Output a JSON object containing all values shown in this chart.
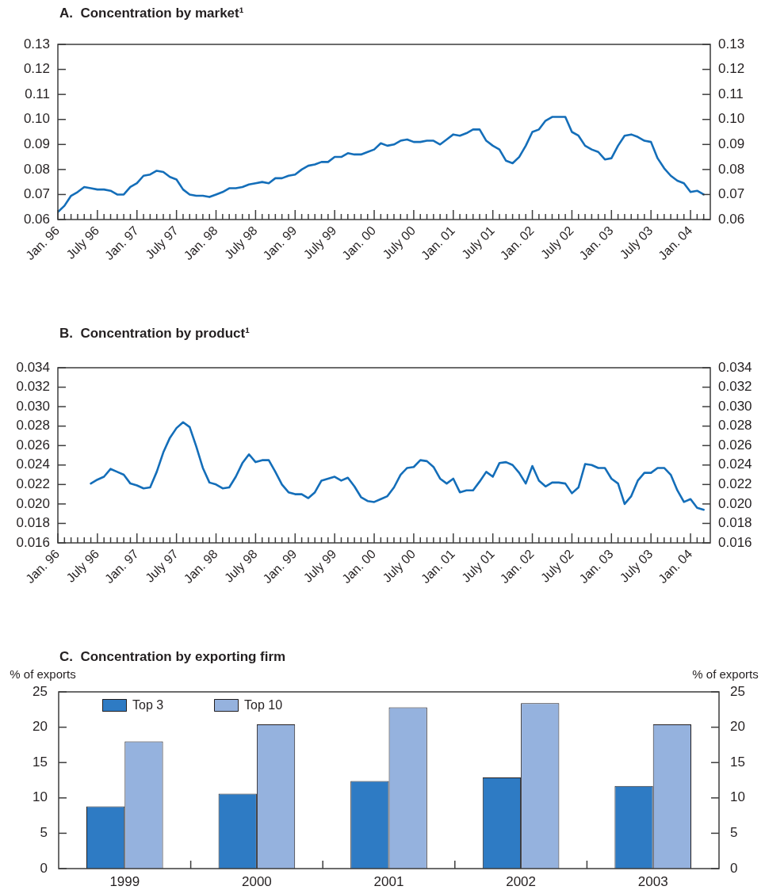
{
  "chart_data": [
    {
      "type": "line",
      "title": "A.  Concentration by market¹",
      "x": [
        "1996-01",
        "1996-02",
        "1996-03",
        "1996-04",
        "1996-05",
        "1996-06",
        "1996-07",
        "1996-08",
        "1996-09",
        "1996-10",
        "1996-11",
        "1996-12",
        "1997-01",
        "1997-02",
        "1997-03",
        "1997-04",
        "1997-05",
        "1997-06",
        "1997-07",
        "1997-08",
        "1997-09",
        "1997-10",
        "1997-11",
        "1997-12",
        "1998-01",
        "1998-02",
        "1998-03",
        "1998-04",
        "1998-05",
        "1998-06",
        "1998-07",
        "1998-08",
        "1998-09",
        "1998-10",
        "1998-11",
        "1998-12",
        "1999-01",
        "1999-02",
        "1999-03",
        "1999-04",
        "1999-05",
        "1999-06",
        "1999-07",
        "1999-08",
        "1999-09",
        "1999-10",
        "1999-11",
        "1999-12",
        "2000-01",
        "2000-02",
        "2000-03",
        "2000-04",
        "2000-05",
        "2000-06",
        "2000-07",
        "2000-08",
        "2000-09",
        "2000-10",
        "2000-11",
        "2000-12",
        "2001-01",
        "2001-02",
        "2001-03",
        "2001-04",
        "2001-05",
        "2001-06",
        "2001-07",
        "2001-08",
        "2001-09",
        "2001-10",
        "2001-11",
        "2001-12",
        "2002-01",
        "2002-02",
        "2002-03",
        "2002-04",
        "2002-05",
        "2002-06",
        "2002-07",
        "2002-08",
        "2002-09",
        "2002-10",
        "2002-11",
        "2002-12",
        "2003-01",
        "2003-02",
        "2003-03",
        "2003-04",
        "2003-05",
        "2003-06",
        "2003-07",
        "2003-08",
        "2003-09",
        "2003-10",
        "2003-11",
        "2003-12",
        "2004-01",
        "2004-02",
        "2004-03"
      ],
      "color": "#146eb9",
      "values": [
        0.063,
        0.0655,
        0.0695,
        0.071,
        0.073,
        0.0725,
        0.072,
        0.072,
        0.0715,
        0.07,
        0.07,
        0.073,
        0.0745,
        0.0775,
        0.078,
        0.0795,
        0.079,
        0.077,
        0.076,
        0.072,
        0.07,
        0.0695,
        0.0695,
        0.069,
        0.07,
        0.071,
        0.0725,
        0.0725,
        0.073,
        0.074,
        0.0745,
        0.075,
        0.0745,
        0.0765,
        0.0765,
        0.0775,
        0.078,
        0.08,
        0.0815,
        0.082,
        0.083,
        0.083,
        0.085,
        0.085,
        0.0865,
        0.086,
        0.086,
        0.087,
        0.088,
        0.0905,
        0.0895,
        0.09,
        0.0915,
        0.092,
        0.091,
        0.091,
        0.0915,
        0.0915,
        0.09,
        0.092,
        0.094,
        0.0935,
        0.0945,
        0.096,
        0.096,
        0.0915,
        0.0895,
        0.088,
        0.0835,
        0.0825,
        0.085,
        0.0895,
        0.095,
        0.096,
        0.0995,
        0.101,
        0.101,
        0.101,
        0.095,
        0.0935,
        0.0895,
        0.088,
        0.087,
        0.084,
        0.0845,
        0.0895,
        0.0935,
        0.094,
        0.093,
        0.0915,
        0.091,
        0.0845,
        0.0805,
        0.0775,
        0.0755,
        0.0745,
        0.071,
        0.0715,
        0.07
      ],
      "xlim": [
        "1996-01",
        "2004-04"
      ],
      "xticks": [
        {
          "value": "1996-01",
          "label": "Jan. 96"
        },
        {
          "value": "1996-02",
          "label": null
        },
        {
          "value": "1996-03",
          "label": null
        },
        {
          "value": "1996-04",
          "label": null
        },
        {
          "value": "1996-05",
          "label": null
        },
        {
          "value": "1996-06",
          "label": null
        },
        {
          "value": "1996-07",
          "label": "July 96"
        },
        {
          "value": "1996-08",
          "label": null
        },
        {
          "value": "1996-09",
          "label": null
        },
        {
          "value": "1996-10",
          "label": null
        },
        {
          "value": "1996-11",
          "label": null
        },
        {
          "value": "1996-12",
          "label": null
        },
        {
          "value": "1997-01",
          "label": "Jan. 97"
        },
        {
          "value": "1997-02",
          "label": null
        },
        {
          "value": "1997-03",
          "label": null
        },
        {
          "value": "1997-04",
          "label": null
        },
        {
          "value": "1997-05",
          "label": null
        },
        {
          "value": "1997-06",
          "label": null
        },
        {
          "value": "1997-07",
          "label": "July 97"
        },
        {
          "value": "1997-08",
          "label": null
        },
        {
          "value": "1997-09",
          "label": null
        },
        {
          "value": "1997-10",
          "label": null
        },
        {
          "value": "1997-11",
          "label": null
        },
        {
          "value": "1997-12",
          "label": null
        },
        {
          "value": "1998-01",
          "label": "Jan. 98"
        },
        {
          "value": "1998-02",
          "label": null
        },
        {
          "value": "1998-03",
          "label": null
        },
        {
          "value": "1998-04",
          "label": null
        },
        {
          "value": "1998-05",
          "label": null
        },
        {
          "value": "1998-06",
          "label": null
        },
        {
          "value": "1998-07",
          "label": "July 98"
        },
        {
          "value": "1998-08",
          "label": null
        },
        {
          "value": "1998-09",
          "label": null
        },
        {
          "value": "1998-10",
          "label": null
        },
        {
          "value": "1998-11",
          "label": null
        },
        {
          "value": "1998-12",
          "label": null
        },
        {
          "value": "1999-01",
          "label": "Jan. 99"
        },
        {
          "value": "1999-02",
          "label": null
        },
        {
          "value": "1999-03",
          "label": null
        },
        {
          "value": "1999-04",
          "label": null
        },
        {
          "value": "1999-05",
          "label": null
        },
        {
          "value": "1999-06",
          "label": null
        },
        {
          "value": "1999-07",
          "label": "July 99"
        },
        {
          "value": "1999-08",
          "label": null
        },
        {
          "value": "1999-09",
          "label": null
        },
        {
          "value": "1999-10",
          "label": null
        },
        {
          "value": "1999-11",
          "label": null
        },
        {
          "value": "1999-12",
          "label": null
        },
        {
          "value": "2000-01",
          "label": "Jan. 00"
        },
        {
          "value": "2000-02",
          "label": null
        },
        {
          "value": "2000-03",
          "label": null
        },
        {
          "value": "2000-04",
          "label": null
        },
        {
          "value": "2000-05",
          "label": null
        },
        {
          "value": "2000-06",
          "label": null
        },
        {
          "value": "2000-07",
          "label": "July 00"
        },
        {
          "value": "2000-08",
          "label": null
        },
        {
          "value": "2000-09",
          "label": null
        },
        {
          "value": "2000-10",
          "label": null
        },
        {
          "value": "2000-11",
          "label": null
        },
        {
          "value": "2000-12",
          "label": null
        },
        {
          "value": "2001-01",
          "label": "Jan. 01"
        },
        {
          "value": "2001-02",
          "label": null
        },
        {
          "value": "2001-03",
          "label": null
        },
        {
          "value": "2001-04",
          "label": null
        },
        {
          "value": "2001-05",
          "label": null
        },
        {
          "value": "2001-06",
          "label": null
        },
        {
          "value": "2001-07",
          "label": "July 01"
        },
        {
          "value": "2001-08",
          "label": null
        },
        {
          "value": "2001-09",
          "label": null
        },
        {
          "value": "2001-10",
          "label": null
        },
        {
          "value": "2001-11",
          "label": null
        },
        {
          "value": "2001-12",
          "label": null
        },
        {
          "value": "2002-01",
          "label": "Jan. 02"
        },
        {
          "value": "2002-02",
          "label": null
        },
        {
          "value": "2002-03",
          "label": null
        },
        {
          "value": "2002-04",
          "label": null
        },
        {
          "value": "2002-05",
          "label": null
        },
        {
          "value": "2002-06",
          "label": null
        },
        {
          "value": "2002-07",
          "label": "July 02"
        },
        {
          "value": "2002-08",
          "label": null
        },
        {
          "value": "2002-09",
          "label": null
        },
        {
          "value": "2002-10",
          "label": null
        },
        {
          "value": "2002-11",
          "label": null
        },
        {
          "value": "2002-12",
          "label": null
        },
        {
          "value": "2003-01",
          "label": "Jan. 03"
        },
        {
          "value": "2003-02",
          "label": null
        },
        {
          "value": "2003-03",
          "label": null
        },
        {
          "value": "2003-04",
          "label": null
        },
        {
          "value": "2003-05",
          "label": null
        },
        {
          "value": "2003-06",
          "label": null
        },
        {
          "value": "2003-07",
          "label": "July 03"
        },
        {
          "value": "2003-08",
          "label": null
        },
        {
          "value": "2003-09",
          "label": null
        },
        {
          "value": "2003-10",
          "label": null
        },
        {
          "value": "2003-11",
          "label": null
        },
        {
          "value": "2003-12",
          "label": null
        },
        {
          "value": "2004-01",
          "label": "Jan. 04"
        },
        {
          "value": "2004-02",
          "label": null
        },
        {
          "value": "2004-03",
          "label": null
        }
      ],
      "ylim": [
        0.06,
        0.13
      ],
      "yticks": [
        0.06,
        0.07,
        0.08,
        0.09,
        {
          "value": 0.1,
          "label": "0.10"
        },
        0.11,
        0.12,
        0.13
      ],
      "y2lim": [
        0.06,
        0.13
      ],
      "y2ticks": [
        0.06,
        0.07,
        0.08,
        0.09,
        {
          "value": 0.1,
          "label": "0.10"
        },
        0.11,
        0.12,
        0.13
      ],
      "marker": "none",
      "line_style": "solid"
    },
    {
      "type": "line",
      "title": "B.  Concentration by product¹",
      "x": [
        "1996-06",
        "1996-07",
        "1996-08",
        "1996-09",
        "1996-10",
        "1996-11",
        "1996-12",
        "1997-01",
        "1997-02",
        "1997-03",
        "1997-04",
        "1997-05",
        "1997-06",
        "1997-07",
        "1997-08",
        "1997-09",
        "1997-10",
        "1997-11",
        "1997-12",
        "1998-01",
        "1998-02",
        "1998-03",
        "1998-04",
        "1998-05",
        "1998-06",
        "1998-07",
        "1998-08",
        "1998-09",
        "1998-10",
        "1998-11",
        "1998-12",
        "1999-01",
        "1999-02",
        "1999-03",
        "1999-04",
        "1999-05",
        "1999-06",
        "1999-07",
        "1999-08",
        "1999-09",
        "1999-10",
        "1999-11",
        "1999-12",
        "2000-01",
        "2000-02",
        "2000-03",
        "2000-04",
        "2000-05",
        "2000-06",
        "2000-07",
        "2000-08",
        "2000-09",
        "2000-10",
        "2000-11",
        "2000-12",
        "2001-01",
        "2001-02",
        "2001-03",
        "2001-04",
        "2001-05",
        "2001-06",
        "2001-07",
        "2001-08",
        "2001-09",
        "2001-10",
        "2001-11",
        "2001-12",
        "2002-01",
        "2002-02",
        "2002-03",
        "2002-04",
        "2002-05",
        "2002-06",
        "2002-07",
        "2002-08",
        "2002-09",
        "2002-10",
        "2002-11",
        "2002-12",
        "2003-01",
        "2003-02",
        "2003-03",
        "2003-04",
        "2003-05",
        "2003-06",
        "2003-07",
        "2003-08",
        "2003-09",
        "2003-10",
        "2003-11",
        "2003-12",
        "2004-01",
        "2004-02",
        "2004-03"
      ],
      "color": "#146eb9",
      "values": [
        0.0221,
        0.0225,
        0.0228,
        0.0236,
        0.0233,
        0.023,
        0.0221,
        0.0219,
        0.0216,
        0.0217,
        0.0233,
        0.0253,
        0.0268,
        0.0278,
        0.0284,
        0.0279,
        0.0259,
        0.0237,
        0.0222,
        0.022,
        0.0216,
        0.0217,
        0.0228,
        0.0242,
        0.0251,
        0.0243,
        0.0245,
        0.0245,
        0.0233,
        0.022,
        0.0212,
        0.021,
        0.021,
        0.0206,
        0.0212,
        0.0224,
        0.0226,
        0.0228,
        0.0224,
        0.0227,
        0.0218,
        0.0207,
        0.0203,
        0.0202,
        0.0205,
        0.0208,
        0.0217,
        0.023,
        0.0237,
        0.0238,
        0.0245,
        0.0244,
        0.0238,
        0.0226,
        0.0221,
        0.0226,
        0.0212,
        0.0214,
        0.0214,
        0.0223,
        0.0233,
        0.0228,
        0.0242,
        0.0243,
        0.024,
        0.0232,
        0.0221,
        0.0239,
        0.0224,
        0.0218,
        0.0222,
        0.0222,
        0.0221,
        0.0211,
        0.0217,
        0.0241,
        0.024,
        0.0237,
        0.0237,
        0.0226,
        0.0221,
        0.02,
        0.0208,
        0.0224,
        0.0232,
        0.0232,
        0.0237,
        0.0237,
        0.023,
        0.0214,
        0.0202,
        0.0205,
        0.0196,
        0.0194
      ],
      "xlim": [
        "1996-01",
        "2004-04"
      ],
      "xticks": [
        {
          "value": "1996-01",
          "label": "Jan. 96"
        },
        {
          "value": "1996-02",
          "label": null
        },
        {
          "value": "1996-03",
          "label": null
        },
        {
          "value": "1996-04",
          "label": null
        },
        {
          "value": "1996-05",
          "label": null
        },
        {
          "value": "1996-06",
          "label": null
        },
        {
          "value": "1996-07",
          "label": "July 96"
        },
        {
          "value": "1996-08",
          "label": null
        },
        {
          "value": "1996-09",
          "label": null
        },
        {
          "value": "1996-10",
          "label": null
        },
        {
          "value": "1996-11",
          "label": null
        },
        {
          "value": "1996-12",
          "label": null
        },
        {
          "value": "1997-01",
          "label": "Jan. 97"
        },
        {
          "value": "1997-02",
          "label": null
        },
        {
          "value": "1997-03",
          "label": null
        },
        {
          "value": "1997-04",
          "label": null
        },
        {
          "value": "1997-05",
          "label": null
        },
        {
          "value": "1997-06",
          "label": null
        },
        {
          "value": "1997-07",
          "label": "July 97"
        },
        {
          "value": "1997-08",
          "label": null
        },
        {
          "value": "1997-09",
          "label": null
        },
        {
          "value": "1997-10",
          "label": null
        },
        {
          "value": "1997-11",
          "label": null
        },
        {
          "value": "1997-12",
          "label": null
        },
        {
          "value": "1998-01",
          "label": "Jan. 98"
        },
        {
          "value": "1998-02",
          "label": null
        },
        {
          "value": "1998-03",
          "label": null
        },
        {
          "value": "1998-04",
          "label": null
        },
        {
          "value": "1998-05",
          "label": null
        },
        {
          "value": "1998-06",
          "label": null
        },
        {
          "value": "1998-07",
          "label": "July 98"
        },
        {
          "value": "1998-08",
          "label": null
        },
        {
          "value": "1998-09",
          "label": null
        },
        {
          "value": "1998-10",
          "label": null
        },
        {
          "value": "1998-11",
          "label": null
        },
        {
          "value": "1998-12",
          "label": null
        },
        {
          "value": "1999-01",
          "label": "Jan. 99"
        },
        {
          "value": "1999-02",
          "label": null
        },
        {
          "value": "1999-03",
          "label": null
        },
        {
          "value": "1999-04",
          "label": null
        },
        {
          "value": "1999-05",
          "label": null
        },
        {
          "value": "1999-06",
          "label": null
        },
        {
          "value": "1999-07",
          "label": "July 99"
        },
        {
          "value": "1999-08",
          "label": null
        },
        {
          "value": "1999-09",
          "label": null
        },
        {
          "value": "1999-10",
          "label": null
        },
        {
          "value": "1999-11",
          "label": null
        },
        {
          "value": "1999-12",
          "label": null
        },
        {
          "value": "2000-01",
          "label": "Jan. 00"
        },
        {
          "value": "2000-02",
          "label": null
        },
        {
          "value": "2000-03",
          "label": null
        },
        {
          "value": "2000-04",
          "label": null
        },
        {
          "value": "2000-05",
          "label": null
        },
        {
          "value": "2000-06",
          "label": null
        },
        {
          "value": "2000-07",
          "label": "July 00"
        },
        {
          "value": "2000-08",
          "label": null
        },
        {
          "value": "2000-09",
          "label": null
        },
        {
          "value": "2000-10",
          "label": null
        },
        {
          "value": "2000-11",
          "label": null
        },
        {
          "value": "2000-12",
          "label": null
        },
        {
          "value": "2001-01",
          "label": "Jan. 01"
        },
        {
          "value": "2001-02",
          "label": null
        },
        {
          "value": "2001-03",
          "label": null
        },
        {
          "value": "2001-04",
          "label": null
        },
        {
          "value": "2001-05",
          "label": null
        },
        {
          "value": "2001-06",
          "label": null
        },
        {
          "value": "2001-07",
          "label": "July 01"
        },
        {
          "value": "2001-08",
          "label": null
        },
        {
          "value": "2001-09",
          "label": null
        },
        {
          "value": "2001-10",
          "label": null
        },
        {
          "value": "2001-11",
          "label": null
        },
        {
          "value": "2001-12",
          "label": null
        },
        {
          "value": "2002-01",
          "label": "Jan. 02"
        },
        {
          "value": "2002-02",
          "label": null
        },
        {
          "value": "2002-03",
          "label": null
        },
        {
          "value": "2002-04",
          "label": null
        },
        {
          "value": "2002-05",
          "label": null
        },
        {
          "value": "2002-06",
          "label": null
        },
        {
          "value": "2002-07",
          "label": "July 02"
        },
        {
          "value": "2002-08",
          "label": null
        },
        {
          "value": "2002-09",
          "label": null
        },
        {
          "value": "2002-10",
          "label": null
        },
        {
          "value": "2002-11",
          "label": null
        },
        {
          "value": "2002-12",
          "label": null
        },
        {
          "value": "2003-01",
          "label": "Jan. 03"
        },
        {
          "value": "2003-02",
          "label": null
        },
        {
          "value": "2003-03",
          "label": null
        },
        {
          "value": "2003-04",
          "label": null
        },
        {
          "value": "2003-05",
          "label": null
        },
        {
          "value": "2003-06",
          "label": null
        },
        {
          "value": "2003-07",
          "label": "July 03"
        },
        {
          "value": "2003-08",
          "label": null
        },
        {
          "value": "2003-09",
          "label": null
        },
        {
          "value": "2003-10",
          "label": null
        },
        {
          "value": "2003-11",
          "label": null
        },
        {
          "value": "2003-12",
          "label": null
        },
        {
          "value": "2004-01",
          "label": "Jan. 04"
        },
        {
          "value": "2004-02",
          "label": null
        },
        {
          "value": "2004-03",
          "label": null
        }
      ],
      "ylim": [
        0.016,
        0.034
      ],
      "yticks": [
        0.016,
        0.018,
        {
          "value": 0.02,
          "label": "0.020"
        },
        0.022,
        0.024,
        0.026,
        0.028,
        {
          "value": 0.03,
          "label": "0.030"
        },
        0.032,
        0.034
      ],
      "y2lim": [
        0.016,
        0.034
      ],
      "y2ticks": [
        0.016,
        0.018,
        {
          "value": 0.02,
          "label": "0.020"
        },
        0.022,
        0.024,
        0.026,
        0.028,
        {
          "value": 0.03,
          "label": "0.030"
        },
        0.032,
        0.034
      ],
      "marker": "none",
      "line_style": "solid"
    },
    {
      "type": "bar",
      "title": "C.  Concentration by exporting firm",
      "ylabel": "% of exports",
      "y2label": "% of exports",
      "categories": [
        "1999",
        "2000",
        "2001",
        "2002",
        "2003"
      ],
      "series": [
        {
          "name": "Top 3",
          "color": "#2e7bc4",
          "values": [
            8.8,
            10.6,
            12.4,
            12.9,
            11.7
          ]
        },
        {
          "name": "Top 10",
          "color": "#95b2de",
          "values": [
            18.0,
            20.4,
            22.8,
            23.4,
            20.4
          ]
        }
      ],
      "ylim": [
        0,
        25
      ],
      "yticks": [
        0,
        5,
        10,
        15,
        20,
        25
      ],
      "y2lim": [
        0,
        25
      ],
      "y2ticks": [
        0,
        5,
        10,
        15,
        20,
        25
      ],
      "legend": "top left"
    }
  ]
}
